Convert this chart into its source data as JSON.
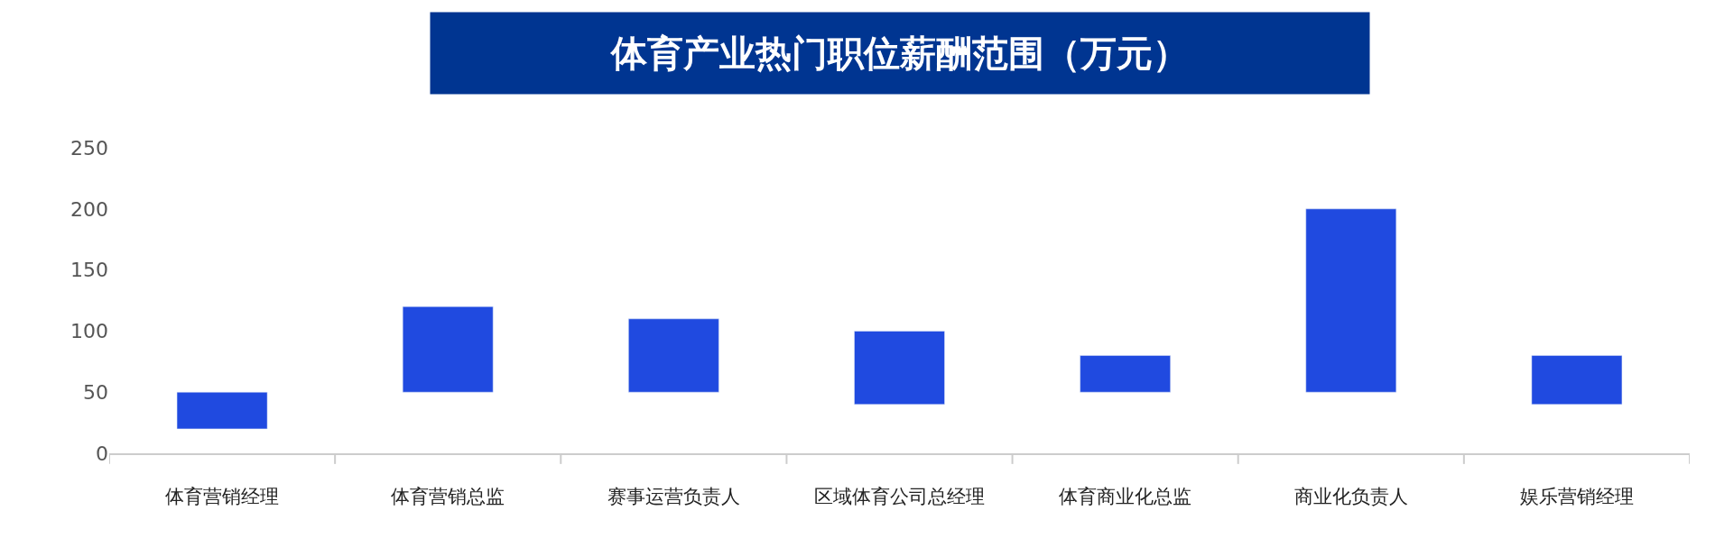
{
  "chart_data": {
    "type": "bar",
    "title": "体育产业热门职位薪酬范围（万元）",
    "categories": [
      "体育营销经理",
      "体育营销总监",
      "赛事运营负责人",
      "区域体育公司总经理",
      "体育商业化总监",
      "商业化负责人",
      "娱乐营销经理"
    ],
    "base": [
      20,
      50,
      50,
      40,
      50,
      50,
      40
    ],
    "values": [
      30,
      70,
      60,
      60,
      30,
      150,
      40
    ],
    "color": "#204ae0",
    "ylim": [
      0,
      250
    ],
    "yticks": [
      0,
      50,
      100,
      150,
      200,
      250
    ],
    "legend": false
  }
}
